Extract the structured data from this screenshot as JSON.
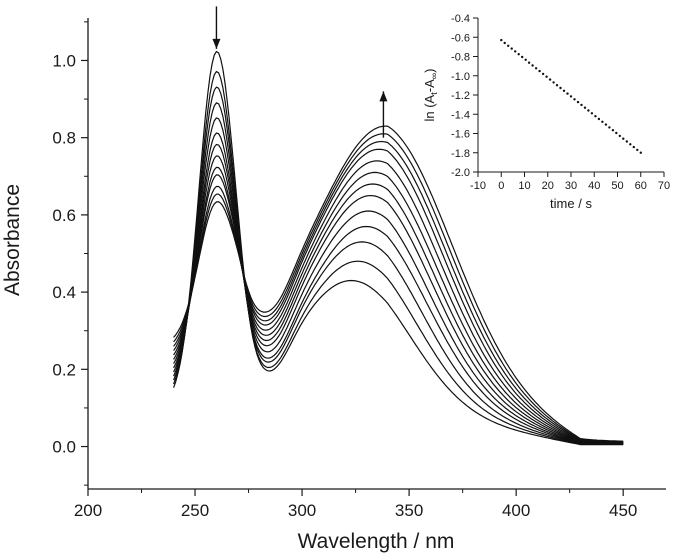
{
  "chart_data": [
    {
      "type": "line",
      "name": "uv-vis-spectra",
      "xlabel": "Wavelength / nm",
      "ylabel": "Absorbance",
      "xlim": [
        200,
        470
      ],
      "ylim": [
        -0.11,
        1.11
      ],
      "xticks": [
        200,
        250,
        300,
        350,
        400,
        450
      ],
      "xtick_labels": [
        "200",
        "250",
        "300",
        "350",
        "400",
        "450"
      ],
      "yticks": [
        0.0,
        0.2,
        0.4,
        0.6,
        0.8,
        1.0
      ],
      "ytick_labels": [
        "0.0",
        "0.2",
        "0.4",
        "0.6",
        "0.8",
        "1.0"
      ],
      "grid": false,
      "annotations": [
        {
          "type": "arrow",
          "direction": "down",
          "x": 260,
          "y_from": 1.14,
          "y_to": 1.03,
          "meaning": "peak at 260 nm decreases"
        },
        {
          "type": "arrow",
          "direction": "up",
          "x": 338,
          "y_from": 0.8,
          "y_to": 0.92,
          "meaning": "peak at ~338 nm increases"
        }
      ],
      "isosbestic_point": {
        "x": 280,
        "y": 0.37
      },
      "series": [
        {
          "name": "scan-1",
          "peak1": 1.0,
          "peak2": 0.38,
          "peak2_x": 323
        },
        {
          "name": "scan-2",
          "peak1": 0.95,
          "peak2": 0.43,
          "peak2_x": 326
        },
        {
          "name": "scan-3",
          "peak1": 0.91,
          "peak2": 0.48,
          "peak2_x": 328
        },
        {
          "name": "scan-4",
          "peak1": 0.87,
          "peak2": 0.52,
          "peak2_x": 330
        },
        {
          "name": "scan-5",
          "peak1": 0.83,
          "peak2": 0.56,
          "peak2_x": 331
        },
        {
          "name": "scan-6",
          "peak1": 0.79,
          "peak2": 0.6,
          "peak2_x": 332
        },
        {
          "name": "scan-7",
          "peak1": 0.76,
          "peak2": 0.63,
          "peak2_x": 333
        },
        {
          "name": "scan-8",
          "peak1": 0.73,
          "peak2": 0.66,
          "peak2_x": 334
        },
        {
          "name": "scan-9",
          "peak1": 0.7,
          "peak2": 0.69,
          "peak2_x": 335
        },
        {
          "name": "scan-10",
          "peak1": 0.68,
          "peak2": 0.72,
          "peak2_x": 336
        },
        {
          "name": "scan-11",
          "peak1": 0.65,
          "peak2": 0.74,
          "peak2_x": 337
        },
        {
          "name": "scan-12",
          "peak1": 0.63,
          "peak2": 0.76,
          "peak2_x": 338
        },
        {
          "name": "scan-13",
          "peak1": 0.61,
          "peak2": 0.78,
          "peak2_x": 339
        }
      ],
      "series_start": {
        "x": 240,
        "y_first": 0.575,
        "y_last": 0.54
      },
      "series_end": {
        "x": 450,
        "y": 0.01
      }
    },
    {
      "type": "scatter",
      "name": "inset-kinetics",
      "xlabel": "time / s",
      "ylabel_parts": {
        "prefix": "ln (A",
        "sub_t": "t",
        "middle": "-A",
        "sub_inf": "∞",
        "suffix": ")"
      },
      "xlim": [
        -10,
        70
      ],
      "ylim": [
        -2.0,
        -0.4
      ],
      "xticks": [
        -10,
        0,
        10,
        20,
        30,
        40,
        50,
        60,
        70
      ],
      "xtick_labels": [
        "-10",
        "0",
        "10",
        "20",
        "30",
        "40",
        "50",
        "60",
        "70"
      ],
      "yticks": [
        -2.0,
        -1.8,
        -1.6,
        -1.4,
        -1.2,
        -1.0,
        -0.8,
        -0.6,
        -0.4
      ],
      "ytick_labels": [
        "-2.0",
        "-1.8",
        "-1.6",
        "-1.4",
        "-1.2",
        "-1.0",
        "-0.8",
        "-0.6",
        "-0.4"
      ],
      "grid": false,
      "points": {
        "x_start": 0,
        "x_end": 60,
        "x_step": 1.5,
        "y_start": -0.63,
        "y_end": -1.8
      }
    }
  ]
}
